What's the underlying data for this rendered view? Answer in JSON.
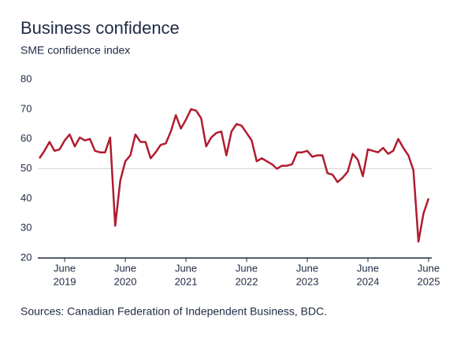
{
  "chart_data": {
    "type": "line",
    "title": "Business confidence",
    "subtitle": "SME confidence index",
    "source": "Sources: Canadian Federation of Independent Business, BDC.",
    "x": [
      "2019-01",
      "2019-02",
      "2019-03",
      "2019-04",
      "2019-05",
      "2019-06",
      "2019-07",
      "2019-08",
      "2019-09",
      "2019-10",
      "2019-11",
      "2019-12",
      "2020-01",
      "2020-02",
      "2020-03",
      "2020-04",
      "2020-05",
      "2020-06",
      "2020-07",
      "2020-08",
      "2020-09",
      "2020-10",
      "2020-11",
      "2020-12",
      "2021-01",
      "2021-02",
      "2021-03",
      "2021-04",
      "2021-05",
      "2021-06",
      "2021-07",
      "2021-08",
      "2021-09",
      "2021-10",
      "2021-11",
      "2021-12",
      "2022-01",
      "2022-02",
      "2022-03",
      "2022-04",
      "2022-05",
      "2022-06",
      "2022-07",
      "2022-08",
      "2022-09",
      "2022-10",
      "2022-11",
      "2022-12",
      "2023-01",
      "2023-02",
      "2023-03",
      "2023-04",
      "2023-05",
      "2023-06",
      "2023-07",
      "2023-08",
      "2023-09",
      "2023-10",
      "2023-11",
      "2023-12",
      "2024-01",
      "2024-02",
      "2024-03",
      "2024-04",
      "2024-05",
      "2024-06",
      "2024-07",
      "2024-08",
      "2024-09",
      "2024-10",
      "2024-11",
      "2024-12",
      "2025-01",
      "2025-02",
      "2025-03",
      "2025-04",
      "2025-05",
      "2025-06"
    ],
    "series": [
      {
        "name": "SME confidence index",
        "color": "#b01c2e",
        "values": [
          53.5,
          56,
          59,
          56,
          56.5,
          59.5,
          61.5,
          57.5,
          60.5,
          59.5,
          60,
          56,
          55.5,
          55.5,
          60.5,
          30.8,
          46,
          52.5,
          54.5,
          61.5,
          59,
          59,
          53.5,
          55.5,
          58,
          58.5,
          62.5,
          68,
          63.5,
          66.5,
          70,
          69.5,
          67,
          57.5,
          60.5,
          62,
          62.5,
          54.5,
          62.5,
          65,
          64.5,
          62,
          59.5,
          52.5,
          53.5,
          52.5,
          51.5,
          50,
          51,
          51,
          51.5,
          55.5,
          55.5,
          56,
          54,
          54.5,
          54.5,
          48.5,
          48,
          45.5,
          47,
          49,
          55,
          53,
          47.5,
          56.5,
          56,
          55.5,
          57,
          55,
          56,
          60,
          57,
          54.5,
          49.5,
          25.5,
          35,
          40
        ]
      }
    ],
    "xlim": [
      "2019-01",
      "2025-06"
    ],
    "xticks": [
      {
        "value": "2019-06",
        "label": "June",
        "sublabel": "2019"
      },
      {
        "value": "2020-06",
        "label": "June",
        "sublabel": "2020"
      },
      {
        "value": "2021-06",
        "label": "June",
        "sublabel": "2021"
      },
      {
        "value": "2022-06",
        "label": "June",
        "sublabel": "2022"
      },
      {
        "value": "2023-06",
        "label": "June",
        "sublabel": "2023"
      },
      {
        "value": "2024-06",
        "label": "June",
        "sublabel": "2024"
      },
      {
        "value": "2025-06",
        "label": "June",
        "sublabel": "2025"
      }
    ],
    "ylim": [
      20,
      80
    ],
    "yticks": [
      20,
      30,
      40,
      50,
      60,
      70,
      80
    ],
    "reference_line": 50
  }
}
